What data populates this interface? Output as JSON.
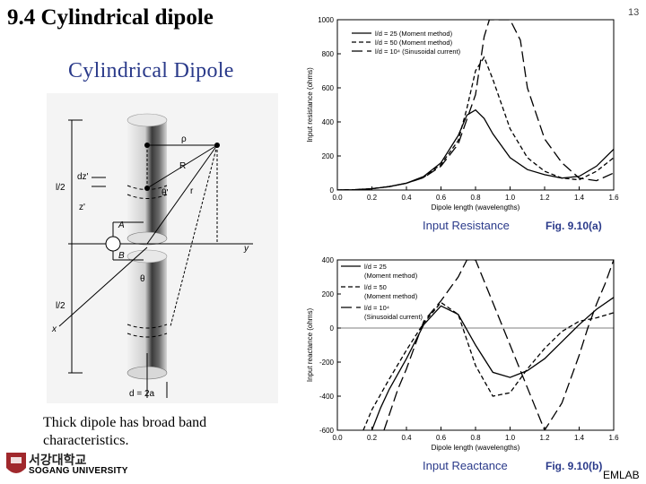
{
  "slide": {
    "title": "9.4 Cylindrical dipole",
    "number": "13",
    "footer": "EMLAB",
    "note_line1": "Thick dipole has broad band",
    "note_line2": "characteristics.",
    "logo_kr": "서강대학교",
    "logo_en": "SOGANG UNIVERSITY"
  },
  "dipole_figure": {
    "title": "Cylindrical Dipole",
    "labels": {
      "rho": "ρ",
      "R": "R",
      "r": "r",
      "theta": "θ",
      "theta_prime": "θ'",
      "A": "A",
      "B": "B",
      "y": "y",
      "x": "x",
      "l_half_top": "l/2",
      "l_half_bottom": "l/2",
      "dz": "dz'",
      "z": "z'",
      "d": "d = 2a"
    }
  },
  "chart_data": [
    {
      "type": "line",
      "xlabel": "Dipole length (wavelengths)",
      "ylabel": "Input resistance (ohms)",
      "xlim": [
        0.0,
        1.6
      ],
      "ylim": [
        0,
        1000
      ],
      "xticks": [
        "0.0",
        "0.2",
        "0.4",
        "0.6",
        "0.8",
        "1.0",
        "1.2",
        "1.4",
        "1.6"
      ],
      "yticks": [
        "0",
        "200",
        "400",
        "600",
        "800",
        "1000"
      ],
      "caption": "Input Resistance",
      "fig_label": "Fig. 9.10(a)",
      "legend": [
        {
          "label": "l/d = 25 (Moment method)",
          "style": "solid"
        },
        {
          "label": "l/d = 50 (Moment method)",
          "style": "dash-short"
        },
        {
          "label": "l/d = 10⁴ (Sinusoidal current)",
          "style": "dash-long"
        }
      ],
      "series": [
        {
          "style": "solid",
          "x": [
            0.0,
            0.1,
            0.2,
            0.3,
            0.4,
            0.5,
            0.6,
            0.7,
            0.75,
            0.8,
            0.85,
            0.9,
            1.0,
            1.1,
            1.2,
            1.3,
            1.4,
            1.5,
            1.6
          ],
          "y": [
            0,
            2,
            8,
            20,
            40,
            80,
            160,
            320,
            440,
            470,
            420,
            330,
            190,
            120,
            90,
            70,
            80,
            140,
            240
          ]
        },
        {
          "style": "dash-short",
          "x": [
            0.0,
            0.1,
            0.2,
            0.3,
            0.4,
            0.5,
            0.6,
            0.7,
            0.75,
            0.8,
            0.85,
            0.9,
            1.0,
            1.1,
            1.2,
            1.3,
            1.4,
            1.5,
            1.6
          ],
          "y": [
            0,
            2,
            8,
            20,
            40,
            75,
            150,
            290,
            480,
            700,
            780,
            650,
            360,
            190,
            110,
            70,
            60,
            110,
            190
          ]
        },
        {
          "style": "dash-long",
          "x": [
            0.0,
            0.1,
            0.2,
            0.3,
            0.4,
            0.5,
            0.6,
            0.7,
            0.8,
            0.85,
            0.88,
            1.0,
            1.06,
            1.1,
            1.2,
            1.3,
            1.4,
            1.5,
            1.6
          ],
          "y": [
            0,
            2,
            8,
            20,
            40,
            73,
            140,
            270,
            560,
            900,
            1000,
            1000,
            880,
            600,
            300,
            160,
            70,
            55,
            100
          ]
        }
      ]
    },
    {
      "type": "line",
      "xlabel": "Dipole length (wavelengths)",
      "ylabel": "Input reactance (ohms)",
      "xlim": [
        0.0,
        1.6
      ],
      "ylim": [
        -600,
        400
      ],
      "xticks": [
        "0.0",
        "0.2",
        "0.4",
        "0.6",
        "0.8",
        "1.0",
        "1.2",
        "1.4",
        "1.6"
      ],
      "yticks": [
        "400",
        "200",
        "0",
        "-200",
        "-400",
        "-600"
      ],
      "caption": "Input Reactance",
      "fig_label": "Fig. 9.10(b)",
      "legend": [
        {
          "label": "l/d = 25",
          "sub": "(Moment method)",
          "style": "solid"
        },
        {
          "label": "l/d = 50",
          "sub": "(Moment method)",
          "style": "dash-short"
        },
        {
          "label": "l/d = 10⁴",
          "sub": "(Sinusoidal current)",
          "style": "dash-long"
        }
      ],
      "series": [
        {
          "style": "solid",
          "x": [
            0.2,
            0.25,
            0.3,
            0.4,
            0.5,
            0.6,
            0.7,
            0.8,
            0.9,
            1.0,
            1.1,
            1.2,
            1.3,
            1.4,
            1.5,
            1.6
          ],
          "y": [
            -600,
            -470,
            -360,
            -180,
            20,
            130,
            80,
            -100,
            -260,
            -290,
            -250,
            -180,
            -80,
            20,
            110,
            180
          ]
        },
        {
          "style": "dash-short",
          "x": [
            0.15,
            0.2,
            0.3,
            0.4,
            0.5,
            0.6,
            0.7,
            0.8,
            0.9,
            1.0,
            1.1,
            1.2,
            1.3,
            1.4,
            1.5,
            1.6
          ],
          "y": [
            -600,
            -480,
            -300,
            -130,
            30,
            150,
            80,
            -220,
            -400,
            -380,
            -240,
            -120,
            -20,
            40,
            60,
            90
          ]
        },
        {
          "style": "dash-long",
          "x": [
            0.27,
            0.35,
            0.4,
            0.5,
            0.6,
            0.7,
            0.75,
            0.8,
            1.2,
            1.3,
            1.4,
            1.45,
            1.5,
            1.55,
            1.6
          ],
          "y": [
            -600,
            -360,
            -240,
            40,
            160,
            300,
            400,
            400,
            -600,
            -440,
            -160,
            0,
            140,
            260,
            400
          ]
        }
      ]
    }
  ]
}
